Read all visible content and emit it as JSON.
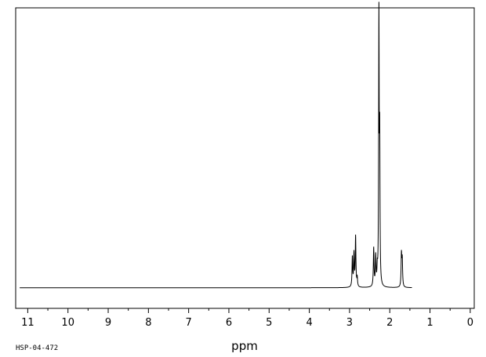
{
  "spectrum_code": "HSP-04-472",
  "chart_data": {
    "type": "line",
    "title": "",
    "xlabel": "ppm",
    "ylabel": "",
    "xlim": [
      11.3,
      -0.1
    ],
    "x_reversed": true,
    "grid": false,
    "x_ticks": [
      11,
      10,
      9,
      8,
      7,
      6,
      5,
      4,
      3,
      2,
      1,
      0
    ],
    "x_minor_step": 0.5,
    "baseline": 0,
    "ylim": [
      -0.07,
      0.95
    ],
    "baseline_extent": [
      11.2,
      1.45
    ],
    "peaks": [
      {
        "ppm": 2.93,
        "height": 0.1,
        "width": 0.01
      },
      {
        "ppm": 2.89,
        "height": 0.11,
        "width": 0.01
      },
      {
        "ppm": 2.85,
        "height": 0.17,
        "width": 0.01
      },
      {
        "ppm": 2.81,
        "height": 0.03,
        "width": 0.01
      },
      {
        "ppm": 2.4,
        "height": 0.13,
        "width": 0.01
      },
      {
        "ppm": 2.35,
        "height": 0.1,
        "width": 0.01
      },
      {
        "ppm": 2.31,
        "height": 0.05,
        "width": 0.01
      },
      {
        "ppm": 2.27,
        "height": 0.9,
        "width": 0.008
      },
      {
        "ppm": 2.25,
        "height": 0.47,
        "width": 0.008
      },
      {
        "ppm": 1.71,
        "height": 0.11,
        "width": 0.01
      },
      {
        "ppm": 1.69,
        "height": 0.09,
        "width": 0.01
      }
    ]
  }
}
